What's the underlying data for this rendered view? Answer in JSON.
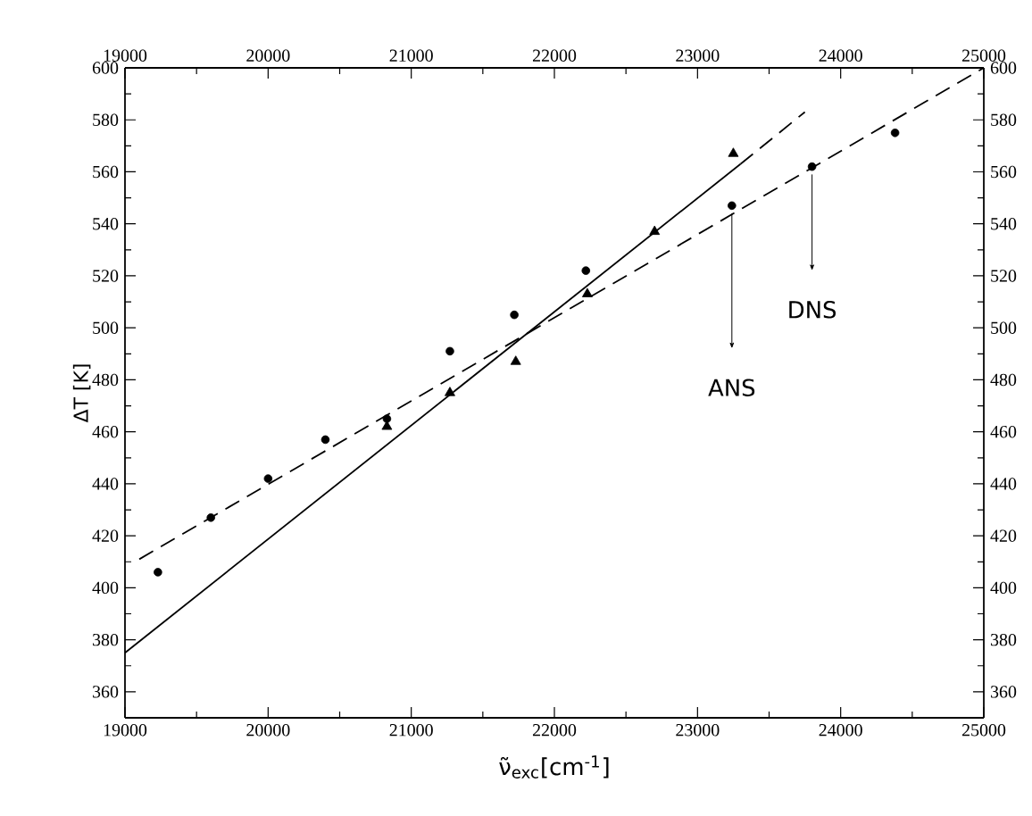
{
  "chart_data": {
    "type": "scatter",
    "xlabel": "ν̃$_{exc}$[cm$^{-1}$]",
    "ylabel": "ΔT [K]",
    "xlim": [
      19000,
      25000
    ],
    "xticks": [
      19000,
      20000,
      21000,
      22000,
      23000,
      24000,
      25000
    ],
    "x2lim": [
      19000,
      25000
    ],
    "x2ticks": [
      19000,
      20000,
      21000,
      22000,
      23000,
      24000,
      25000
    ],
    "ylim": [
      350,
      600
    ],
    "yticks": [
      360,
      380,
      400,
      420,
      440,
      460,
      480,
      500,
      520,
      540,
      560,
      580,
      600
    ],
    "y2lim": [
      350,
      600
    ],
    "y2ticks": [
      360,
      380,
      400,
      420,
      440,
      460,
      480,
      500,
      520,
      540,
      560,
      580,
      600
    ],
    "series": [
      {
        "marker": "circle",
        "color": "#000000",
        "x": [
          19230,
          19600,
          20000,
          20400,
          20830,
          21270,
          21720,
          22220,
          23240,
          23800,
          24380
        ],
        "values": [
          406,
          427,
          442,
          457,
          465,
          491,
          505,
          522,
          547,
          562,
          575
        ]
      },
      {
        "marker": "triangle",
        "color": "#000000",
        "x": [
          20830,
          21270,
          21730,
          22230,
          22700,
          23250
        ],
        "values": [
          462,
          475,
          487,
          513,
          537,
          567
        ]
      },
      {
        "type": "line",
        "line_style": "solid",
        "color": "#000000",
        "x": [
          19000,
          23300
        ],
        "values": [
          375,
          563
        ]
      },
      {
        "type": "line",
        "line_style": "dashed",
        "color": "#000000",
        "x": [
          23300,
          23750
        ],
        "values": [
          563,
          583
        ]
      },
      {
        "type": "line",
        "line_style": "dashed",
        "color": "#000000",
        "x": [
          19100,
          25000
        ],
        "values": [
          411,
          600
        ]
      }
    ],
    "annotations": [
      "ANS",
      "DNS"
    ],
    "grid": false
  }
}
